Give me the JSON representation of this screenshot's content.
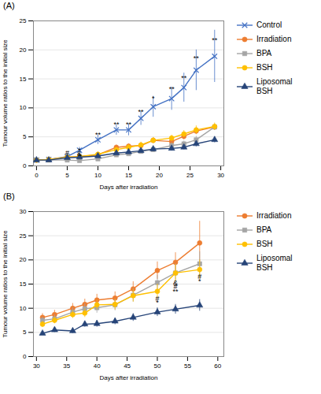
{
  "chart_data": [
    {
      "type": "line",
      "title": "(A)",
      "x": [
        0,
        2,
        5,
        7,
        10,
        13,
        15,
        17,
        19,
        22,
        24,
        26,
        29
      ],
      "series": [
        {
          "name": "Control",
          "color": "#4472C4",
          "marker": "x",
          "values": [
            1.0,
            1.1,
            1.6,
            2.7,
            4.5,
            6.2,
            6.2,
            8.2,
            10.2,
            11.6,
            13.5,
            16.5,
            18.9
          ],
          "errors": [
            0.1,
            0.2,
            0.4,
            0.5,
            0.8,
            0.9,
            1.0,
            1.2,
            1.8,
            2.0,
            2.5,
            3.5,
            4.5
          ]
        },
        {
          "name": "Irradiation",
          "color": "#ED7D31",
          "marker": "circle",
          "values": [
            1.0,
            1.1,
            1.5,
            1.6,
            1.9,
            3.2,
            3.4,
            3.5,
            4.4,
            4.2,
            5.1,
            6.0,
            6.7
          ],
          "errors": [
            0.1,
            0.15,
            0.3,
            0.3,
            0.4,
            0.4,
            0.4,
            0.5,
            0.5,
            0.5,
            0.6,
            0.6,
            0.5
          ]
        },
        {
          "name": "BPA",
          "color": "#A5A5A5",
          "marker": "square",
          "values": [
            1.0,
            1.0,
            1.0,
            0.9,
            1.2,
            1.9,
            2.1,
            2.5,
            2.8,
            3.5,
            3.8,
            4.5,
            6.7
          ],
          "errors": [
            0.1,
            0.1,
            0.2,
            0.2,
            0.3,
            0.3,
            0.3,
            0.4,
            0.4,
            0.5,
            0.5,
            0.6,
            0.5
          ]
        },
        {
          "name": "BSH",
          "color": "#FFC000",
          "marker": "circle",
          "values": [
            1.0,
            1.1,
            1.5,
            1.6,
            2.0,
            2.8,
            3.2,
            3.6,
            4.4,
            4.8,
            5.5,
            6.2,
            6.8
          ],
          "errors": [
            0.1,
            0.15,
            0.3,
            0.3,
            0.4,
            0.4,
            0.5,
            0.5,
            0.5,
            0.5,
            0.6,
            0.7,
            0.6
          ]
        },
        {
          "name": "Liposomal\nBSH",
          "color": "#264478",
          "marker": "triangle",
          "values": [
            1.0,
            1.0,
            1.4,
            1.5,
            1.7,
            2.2,
            2.4,
            2.6,
            2.9,
            3.0,
            3.2,
            3.8,
            4.5
          ],
          "errors": [
            0.1,
            0.15,
            0.2,
            0.2,
            0.3,
            0.3,
            0.3,
            0.3,
            0.4,
            0.4,
            0.4,
            0.5,
            0.5
          ]
        }
      ],
      "annotations": [
        {
          "x": 5,
          "y": 1.9,
          "text": "#"
        },
        {
          "x": 7,
          "y": 2.2,
          "text": "*"
        },
        {
          "x": 7,
          "y": 1.75,
          "text": "&"
        },
        {
          "x": 10,
          "y": 5.0,
          "text": "**"
        },
        {
          "x": 13,
          "y": 6.7,
          "text": "**"
        },
        {
          "x": 15,
          "y": 6.7,
          "text": "**"
        },
        {
          "x": 17,
          "y": 8.9,
          "text": "**"
        },
        {
          "x": 19,
          "y": 11.2,
          "text": "*"
        },
        {
          "x": 22,
          "y": 12.8,
          "text": "**"
        },
        {
          "x": 24,
          "y": 14.7,
          "text": "**"
        },
        {
          "x": 26,
          "y": 18.2,
          "text": "**"
        },
        {
          "x": 29,
          "y": 21.2,
          "text": "**"
        }
      ],
      "xlabel": "Days after irradiation",
      "ylabel": "Tumour volume ratios to the initial size",
      "xlim": [
        -0.5,
        30.5
      ],
      "xticks": [
        0,
        5,
        10,
        15,
        20,
        25,
        30
      ],
      "ylim": [
        0,
        25
      ],
      "yticks": [
        0,
        5,
        10,
        15,
        20,
        25
      ],
      "grid": true,
      "legend": "right"
    },
    {
      "type": "line",
      "title": "(B)",
      "x": [
        31,
        33,
        36,
        38,
        40,
        43,
        46,
        50,
        53,
        57
      ],
      "series": [
        {
          "name": "Irradiation",
          "color": "#ED7D31",
          "marker": "circle",
          "values": [
            8.1,
            8.7,
            10.0,
            10.8,
            11.7,
            12.1,
            14.0,
            17.8,
            19.5,
            23.5
          ],
          "errors": [
            0.8,
            0.9,
            1.0,
            1.1,
            1.2,
            1.3,
            1.5,
            1.8,
            2.0,
            4.5
          ]
        },
        {
          "name": "BPA",
          "color": "#A5A5A5",
          "marker": "square",
          "values": [
            7.5,
            7.8,
            9.2,
            9.9,
            10.1,
            10.7,
            12.7,
            15.3,
            17.3,
            19.2
          ],
          "errors": [
            0.7,
            0.8,
            0.9,
            1.0,
            1.1,
            1.2,
            1.4,
            1.6,
            1.9,
            2.5
          ]
        },
        {
          "name": "BSH",
          "color": "#FFC000",
          "marker": "circle",
          "values": [
            6.7,
            7.5,
            8.7,
            9.0,
            10.7,
            10.8,
            12.6,
            13.5,
            17.3,
            18.0
          ],
          "errors": [
            0.6,
            0.7,
            0.8,
            0.9,
            1.0,
            1.1,
            1.3,
            1.5,
            1.8,
            2.0
          ]
        },
        {
          "name": "Liposomal\nBSH",
          "color": "#264478",
          "marker": "triangle",
          "values": [
            4.8,
            5.5,
            5.3,
            6.7,
            6.8,
            7.3,
            8.1,
            9.2,
            9.8,
            10.6
          ],
          "errors": [
            0.4,
            0.5,
            0.5,
            0.6,
            0.7,
            0.7,
            0.8,
            0.9,
            1.0,
            1.2
          ]
        }
      ],
      "annotations": [
        {
          "x": 50,
          "y": 11.5,
          "text": "#"
        },
        {
          "x": 50,
          "y": 10.6,
          "text": "*"
        },
        {
          "x": 53,
          "y": 14.8,
          "text": "&"
        },
        {
          "x": 53,
          "y": 13.9,
          "text": "#"
        },
        {
          "x": 53,
          "y": 13.0,
          "text": "**"
        },
        {
          "x": 57,
          "y": 16.0,
          "text": "#"
        },
        {
          "x": 57,
          "y": 15.1,
          "text": "*"
        }
      ],
      "xlabel": "Days after irradiation",
      "ylabel": "Tumour volume ratios to the initial size",
      "xlim": [
        29.5,
        61
      ],
      "xticks": [
        30,
        35,
        40,
        45,
        50,
        55,
        60
      ],
      "ylim": [
        0,
        30
      ],
      "yticks": [
        0,
        5,
        10,
        15,
        20,
        25,
        30
      ],
      "grid": true,
      "legend": "right"
    }
  ]
}
